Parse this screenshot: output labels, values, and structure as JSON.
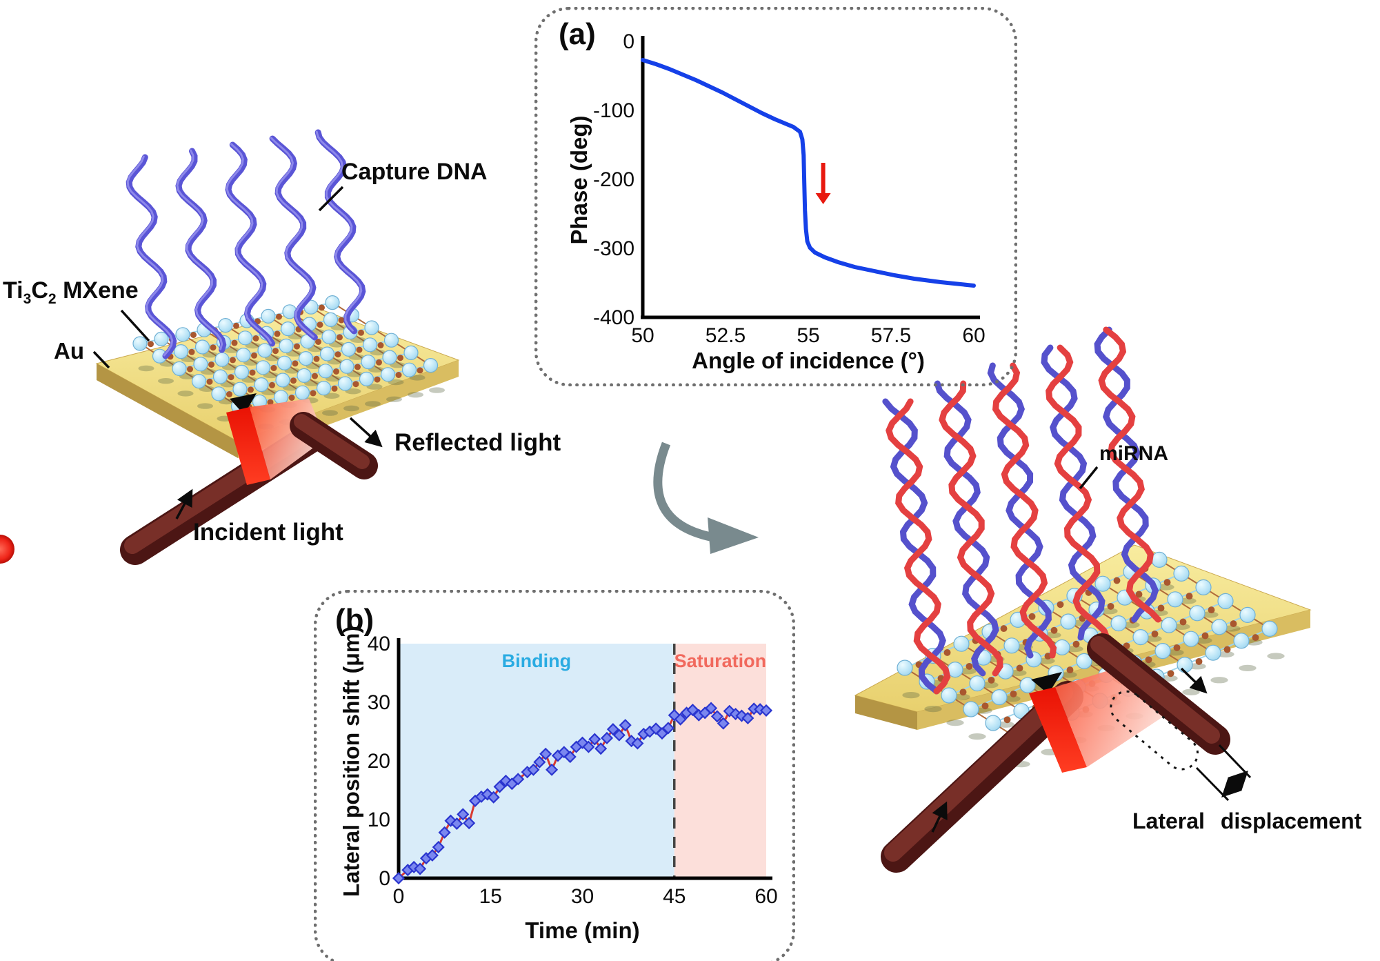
{
  "colors": {
    "phase_curve_blue": "#1540e8",
    "annotation_arrow_red": "#e8190f",
    "binding_fill": "#d9ecf9",
    "binding_text": "#29abe2",
    "saturation_fill": "#fcdfda",
    "saturation_text": "#f1695d",
    "series_line_red": "#d93a30",
    "marker_fill": "#7b87ef",
    "marker_stroke": "#2a35cf",
    "gold": "#f3e48b",
    "capture_dna_blue": "#5a55d6",
    "mirna_red": "#e44040",
    "mirna_blue": "#5551cc",
    "beam_maroon": "#5c1d19",
    "transition_arrow_gray": "#798a8e"
  },
  "labels": {
    "capture_dna": "Capture DNA",
    "mxene": {
      "t1": "Ti",
      "s1": "3",
      "t2": "C",
      "s2": "2",
      "t3": " MXene"
    },
    "au": "Au",
    "reflected_light": "Reflected light",
    "incident_light": "Incident light",
    "mirna": "miRNA",
    "lateral_displacement": "Lateral displacement"
  },
  "chart_data": [
    {
      "id": "a",
      "type": "line",
      "panel_label": "(a)",
      "xlabel": "Angle of incidence (°)",
      "ylabel": "Phase (deg)",
      "xlim": [
        50,
        60
      ],
      "ylim": [
        -400,
        0
      ],
      "x_ticks": [
        50,
        52.5,
        55,
        57.5,
        60
      ],
      "y_ticks": [
        0,
        -100,
        -200,
        -300,
        -400
      ],
      "grid": false,
      "legend": "none",
      "line_color": "#1540e8",
      "series": [
        {
          "name": "phase",
          "points": [
            [
              50,
              -27
            ],
            [
              50.4,
              -33
            ],
            [
              50.8,
              -40
            ],
            [
              51.2,
              -48
            ],
            [
              51.6,
              -56
            ],
            [
              52,
              -65
            ],
            [
              52.4,
              -74
            ],
            [
              52.8,
              -84
            ],
            [
              53.2,
              -94
            ],
            [
              53.6,
              -104
            ],
            [
              54,
              -113
            ],
            [
              54.3,
              -119
            ],
            [
              54.55,
              -124
            ],
            [
              54.75,
              -131
            ],
            [
              54.82,
              -142
            ],
            [
              54.86,
              -165
            ],
            [
              54.88,
              -205
            ],
            [
              54.9,
              -245
            ],
            [
              54.93,
              -272
            ],
            [
              54.97,
              -290
            ],
            [
              55.05,
              -299
            ],
            [
              55.2,
              -306
            ],
            [
              55.5,
              -313
            ],
            [
              55.9,
              -320
            ],
            [
              56.4,
              -327
            ],
            [
              57,
              -333
            ],
            [
              57.6,
              -339
            ],
            [
              58.2,
              -344
            ],
            [
              59,
              -349
            ],
            [
              60,
              -354
            ]
          ]
        }
      ],
      "annotation": {
        "type": "arrow-down",
        "x": 55.45,
        "y_from": -176,
        "y_to": -236,
        "color": "#e8190f"
      }
    },
    {
      "id": "b",
      "type": "line-scatter",
      "panel_label": "(b)",
      "xlabel": "Time (min)",
      "ylabel": "Lateral position shift (μm)",
      "xlim": [
        0,
        60
      ],
      "ylim": [
        0,
        40
      ],
      "x_ticks": [
        0,
        15,
        30,
        45,
        60
      ],
      "y_ticks": [
        0,
        10,
        20,
        30,
        40
      ],
      "grid": false,
      "legend": "none",
      "divider_x": 45,
      "regions": [
        {
          "label": "Binding",
          "from": 0,
          "to": 45,
          "fill": "#d9ecf9",
          "label_color": "#29abe2"
        },
        {
          "label": "Saturation",
          "from": 45,
          "to": 60,
          "fill": "#fcdfda",
          "label_color": "#f1695d"
        }
      ],
      "line_color": "#d93a30",
      "marker": {
        "shape": "diamond",
        "fill": "#7b87ef",
        "stroke": "#2a35cf"
      },
      "series": [
        {
          "name": "lateral position shift",
          "points": [
            [
              0,
              0
            ],
            [
              1.5,
              1.4
            ],
            [
              2.5,
              1.9
            ],
            [
              3.5,
              1.6
            ],
            [
              4.5,
              3.4
            ],
            [
              5.5,
              3.9
            ],
            [
              6.5,
              5.3
            ],
            [
              7.5,
              7.8
            ],
            [
              8.5,
              9.8
            ],
            [
              9.5,
              9.3
            ],
            [
              10.5,
              10.9
            ],
            [
              11.5,
              9.4
            ],
            [
              12.5,
              13.2
            ],
            [
              13.5,
              13.9
            ],
            [
              14.5,
              14.3
            ],
            [
              15.5,
              13.8
            ],
            [
              16.5,
              15.6
            ],
            [
              17.5,
              16.6
            ],
            [
              18.5,
              16.1
            ],
            [
              19.5,
              16.9
            ],
            [
              21,
              18.1
            ],
            [
              22,
              18.5
            ],
            [
              23,
              19.8
            ],
            [
              24,
              21.2
            ],
            [
              25,
              18.5
            ],
            [
              26,
              20.9
            ],
            [
              27,
              21.5
            ],
            [
              28,
              20.7
            ],
            [
              29,
              22.4
            ],
            [
              30,
              23.1
            ],
            [
              31,
              22.4
            ],
            [
              32,
              23.7
            ],
            [
              33,
              22.1
            ],
            [
              34,
              23.9
            ],
            [
              35,
              25.4
            ],
            [
              36,
              24.4
            ],
            [
              37,
              26.1
            ],
            [
              38,
              23.4
            ],
            [
              39,
              23.0
            ],
            [
              40,
              24.6
            ],
            [
              41,
              25.0
            ],
            [
              42,
              25.5
            ],
            [
              43,
              24.7
            ],
            [
              44,
              25.6
            ],
            [
              45,
              27.8
            ],
            [
              46,
              27.1
            ],
            [
              47,
              28.2
            ],
            [
              48,
              28.7
            ],
            [
              49,
              27.8
            ],
            [
              50,
              28.2
            ],
            [
              51,
              29.0
            ],
            [
              52,
              27.6
            ],
            [
              53,
              26.4
            ],
            [
              54,
              28.5
            ],
            [
              55,
              28.0
            ],
            [
              56,
              27.7
            ],
            [
              57,
              27.3
            ],
            [
              58,
              28.9
            ],
            [
              59,
              28.8
            ],
            [
              60,
              28.6
            ]
          ]
        }
      ]
    }
  ]
}
